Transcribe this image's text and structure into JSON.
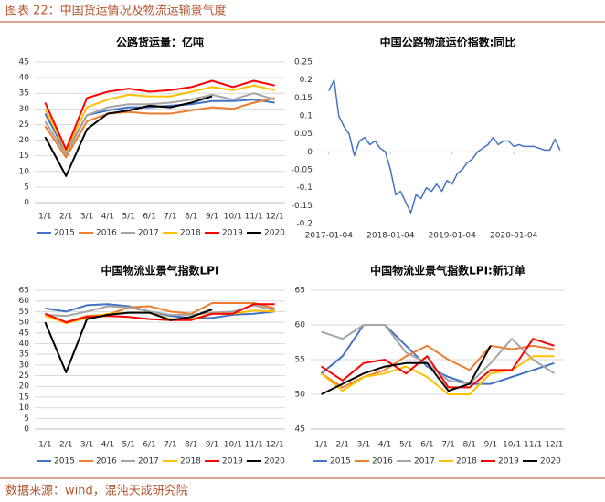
{
  "header": {
    "title": "图表 22：中国货运情况及物流运输景气度"
  },
  "source": "数据来源：wind，混沌天成研究院",
  "chart_data": [
    {
      "type": "line",
      "title": "公路货运量：亿吨",
      "categories": [
        "1/1",
        "2/1",
        "3/1",
        "4/1",
        "5/1",
        "6/1",
        "7/1",
        "8/1",
        "9/1",
        "10/1",
        "11/1",
        "12/1"
      ],
      "ylim": [
        0,
        45
      ],
      "yticks": [
        0,
        5,
        10,
        15,
        20,
        25,
        30,
        35,
        40,
        45
      ],
      "grid": true,
      "legend": "bottom",
      "series": [
        {
          "name": "2015",
          "color": "#4472c4",
          "values": [
            28.5,
            16,
            28,
            29.5,
            30.5,
            30.5,
            31,
            31.5,
            32.5,
            32.5,
            33,
            32
          ]
        },
        {
          "name": "2016",
          "color": "#ed7d31",
          "values": [
            24.5,
            14.5,
            26,
            28.5,
            29,
            28.5,
            28.5,
            29.5,
            30.5,
            30,
            32,
            33.5
          ]
        },
        {
          "name": "2017",
          "color": "#a5a5a5",
          "values": [
            26,
            15.5,
            28,
            30.5,
            31.5,
            31.5,
            32,
            33,
            34.5,
            33,
            35,
            33
          ]
        },
        {
          "name": "2018",
          "color": "#ffc000",
          "values": [
            30,
            16.5,
            30.5,
            33,
            34.5,
            34,
            34,
            35.5,
            37,
            36,
            37.5,
            36
          ]
        },
        {
          "name": "2019",
          "color": "#ff0000",
          "values": [
            32,
            17,
            33.5,
            35.5,
            36.5,
            35.5,
            36,
            37,
            39,
            37,
            39,
            37.5
          ]
        },
        {
          "name": "2020",
          "color": "#000000",
          "values": [
            21,
            8.5,
            23.5,
            28.5,
            29.5,
            31,
            30.5,
            32,
            34,
            null,
            null,
            null
          ]
        }
      ]
    },
    {
      "type": "timeline",
      "title": "中国公路物流运价指数:同比",
      "x": [
        "2017-01-04",
        "2017-02-04",
        "2017-03-04",
        "2017-04-04",
        "2017-05-04",
        "2017-06-04",
        "2017-07-04",
        "2017-08-04",
        "2017-09-04",
        "2017-10-04",
        "2017-11-04",
        "2017-12-04",
        "2018-01-04",
        "2018-02-04",
        "2018-03-04",
        "2018-04-04",
        "2018-05-04",
        "2018-06-04",
        "2018-07-04",
        "2018-08-04",
        "2018-09-04",
        "2018-10-04",
        "2018-11-04",
        "2018-12-04",
        "2019-01-04",
        "2019-02-04",
        "2019-03-04",
        "2019-04-04",
        "2019-05-04",
        "2019-06-04",
        "2019-07-04",
        "2019-08-04",
        "2019-09-04",
        "2019-10-04",
        "2019-11-04",
        "2019-12-04",
        "2020-01-04",
        "2020-02-04",
        "2020-03-04",
        "2020-04-04",
        "2020-05-04",
        "2020-06-04",
        "2020-07-04",
        "2020-08-04",
        "2020-09-04",
        "2020-10-04"
      ],
      "xlim": [
        "2016-11-01",
        "2020-11-01"
      ],
      "xticks": [
        "2017-01-04",
        "2018-01-04",
        "2019-01-04",
        "2020-01-04"
      ],
      "ylim": [
        -0.2,
        0.25
      ],
      "yticks": [
        -0.2,
        -0.15,
        -0.1,
        -0.05,
        0,
        0.05,
        0.1,
        0.15,
        0.2,
        0.25
      ],
      "grid": false,
      "series": [
        {
          "color": "#4472c4",
          "values": [
            0.17,
            0.2,
            0.1,
            0.07,
            0.05,
            -0.01,
            0.03,
            0.04,
            0.02,
            0.03,
            0.01,
            0.0,
            -0.05,
            -0.12,
            -0.11,
            -0.14,
            -0.17,
            -0.12,
            -0.13,
            -0.1,
            -0.11,
            -0.09,
            -0.11,
            -0.08,
            -0.09,
            -0.06,
            -0.05,
            -0.03,
            -0.02,
            0.0,
            0.01,
            0.02,
            0.04,
            0.02,
            0.03,
            0.03,
            0.015,
            0.02,
            0.015,
            0.015,
            0.015,
            0.01,
            0.005,
            0.005,
            0.035,
            0.005
          ]
        }
      ]
    },
    {
      "type": "line",
      "title": "中国物流业景气指数LPI",
      "categories": [
        "1/1",
        "2/1",
        "3/1",
        "4/1",
        "5/1",
        "6/1",
        "7/1",
        "8/1",
        "9/1",
        "10/1",
        "11/1",
        "12/1"
      ],
      "ylim": [
        0,
        65
      ],
      "yticks": [
        0,
        5,
        10,
        15,
        20,
        25,
        30,
        35,
        40,
        45,
        50,
        55,
        60,
        65
      ],
      "grid": true,
      "legend": "bottom",
      "series": [
        {
          "name": "2015",
          "color": "#4472c4",
          "values": [
            56.5,
            55,
            58,
            58.5,
            57.5,
            55,
            53,
            52,
            52,
            53.5,
            54,
            55
          ]
        },
        {
          "name": "2016",
          "color": "#ed7d31",
          "values": [
            53.5,
            50,
            53,
            53.5,
            57,
            57.5,
            55,
            54,
            59,
            59,
            59,
            56.5
          ]
        },
        {
          "name": "2017",
          "color": "#a5a5a5",
          "values": [
            53.5,
            53,
            55,
            57.5,
            57,
            55,
            53.5,
            53.5,
            54.5,
            55,
            58,
            55.5
          ]
        },
        {
          "name": "2018",
          "color": "#ffc000",
          "values": [
            53,
            49.5,
            52,
            54,
            54.5,
            54.5,
            51.5,
            51.5,
            54,
            54,
            55.5,
            55
          ]
        },
        {
          "name": "2019",
          "color": "#ff0000",
          "values": [
            54,
            50,
            52.5,
            53,
            52.5,
            51.5,
            51,
            51,
            54,
            54,
            58.5,
            58.5
          ]
        },
        {
          "name": "2020",
          "color": "#000000",
          "values": [
            50,
            26.5,
            51.5,
            53.5,
            54.5,
            54.5,
            51,
            52.5,
            56,
            null,
            null,
            null
          ]
        }
      ]
    },
    {
      "type": "line",
      "title": "中国物流业景气指数LPI:新订单",
      "categories": [
        "1/1",
        "2/1",
        "3/1",
        "4/1",
        "5/1",
        "6/1",
        "7/1",
        "8/1",
        "9/1",
        "10/1",
        "11/1",
        "12/1"
      ],
      "ylim": [
        45,
        65
      ],
      "yticks": [
        45,
        50,
        55,
        60,
        65
      ],
      "grid": true,
      "legend": "bottom",
      "series": [
        {
          "name": "2015",
          "color": "#4472c4",
          "values": [
            53,
            55.5,
            60,
            60,
            57,
            54,
            52.5,
            51.5,
            51.5,
            52.5,
            53.5,
            54.5
          ]
        },
        {
          "name": "2016",
          "color": "#ed7d31",
          "values": [
            53,
            51,
            52.5,
            53.5,
            55.5,
            57,
            55,
            53.5,
            57,
            56.5,
            57,
            56.5
          ]
        },
        {
          "name": "2017",
          "color": "#a5a5a5",
          "values": [
            59,
            58,
            60,
            60,
            56,
            54.5,
            52,
            51.5,
            54.5,
            58,
            55,
            53
          ]
        },
        {
          "name": "2018",
          "color": "#ffc000",
          "values": [
            53,
            50.5,
            52.5,
            53,
            54,
            52.5,
            50,
            50,
            53,
            53.5,
            55.5,
            55.5
          ]
        },
        {
          "name": "2019",
          "color": "#ff0000",
          "values": [
            54,
            52,
            54.5,
            55,
            53,
            55.5,
            51,
            51,
            53.5,
            53.5,
            58,
            57
          ]
        },
        {
          "name": "2020",
          "color": "#000000",
          "values": [
            50,
            51.5,
            53,
            54,
            54.5,
            54.5,
            50.5,
            51.5,
            57,
            null,
            null,
            null
          ]
        }
      ]
    }
  ]
}
